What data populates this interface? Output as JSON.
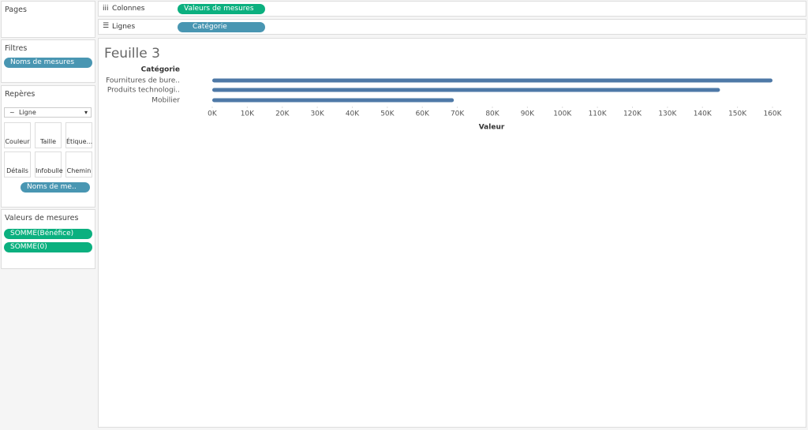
{
  "pages": {
    "title": "Pages"
  },
  "filters": {
    "title": "Filtres",
    "pills": [
      "Noms de mesures"
    ]
  },
  "marks": {
    "title": "Repères",
    "mark_type": "Ligne",
    "buttons": [
      "Couleur",
      "Taille",
      "Étique...",
      "Détails",
      "Infobulle",
      "Chemin"
    ],
    "pill": "Noms de me.."
  },
  "measure_values": {
    "title": "Valeurs de mesures",
    "pills": [
      "SOMME(Bénéfice)",
      "SOMME(0)"
    ]
  },
  "shelves": {
    "columns": {
      "label": "Colonnes",
      "pill": "Valeurs de mesures"
    },
    "rows": {
      "label": "Lignes",
      "pill": "Catégorie"
    }
  },
  "chart_data": {
    "type": "bar",
    "title": "Feuille 3",
    "y_label": "Catégorie",
    "x_label": "Valeur",
    "categories": [
      "Fournitures de bure..",
      "Produits technologi..",
      "Mobilier"
    ],
    "values": [
      160000,
      145000,
      69000
    ],
    "color": "#4e79a7",
    "xlim": [
      0,
      160000
    ],
    "xticks": [
      {
        "value": 0,
        "label": "0K"
      },
      {
        "value": 10000,
        "label": "10K"
      },
      {
        "value": 20000,
        "label": "20K"
      },
      {
        "value": 30000,
        "label": "30K"
      },
      {
        "value": 40000,
        "label": "40K"
      },
      {
        "value": 50000,
        "label": "50K"
      },
      {
        "value": 60000,
        "label": "60K"
      },
      {
        "value": 70000,
        "label": "70K"
      },
      {
        "value": 80000,
        "label": "80K"
      },
      {
        "value": 90000,
        "label": "90K"
      },
      {
        "value": 100000,
        "label": "100K"
      },
      {
        "value": 110000,
        "label": "110K"
      },
      {
        "value": 120000,
        "label": "120K"
      },
      {
        "value": 130000,
        "label": "130K"
      },
      {
        "value": 140000,
        "label": "140K"
      },
      {
        "value": 150000,
        "label": "150K"
      },
      {
        "value": 160000,
        "label": "160K"
      }
    ]
  }
}
